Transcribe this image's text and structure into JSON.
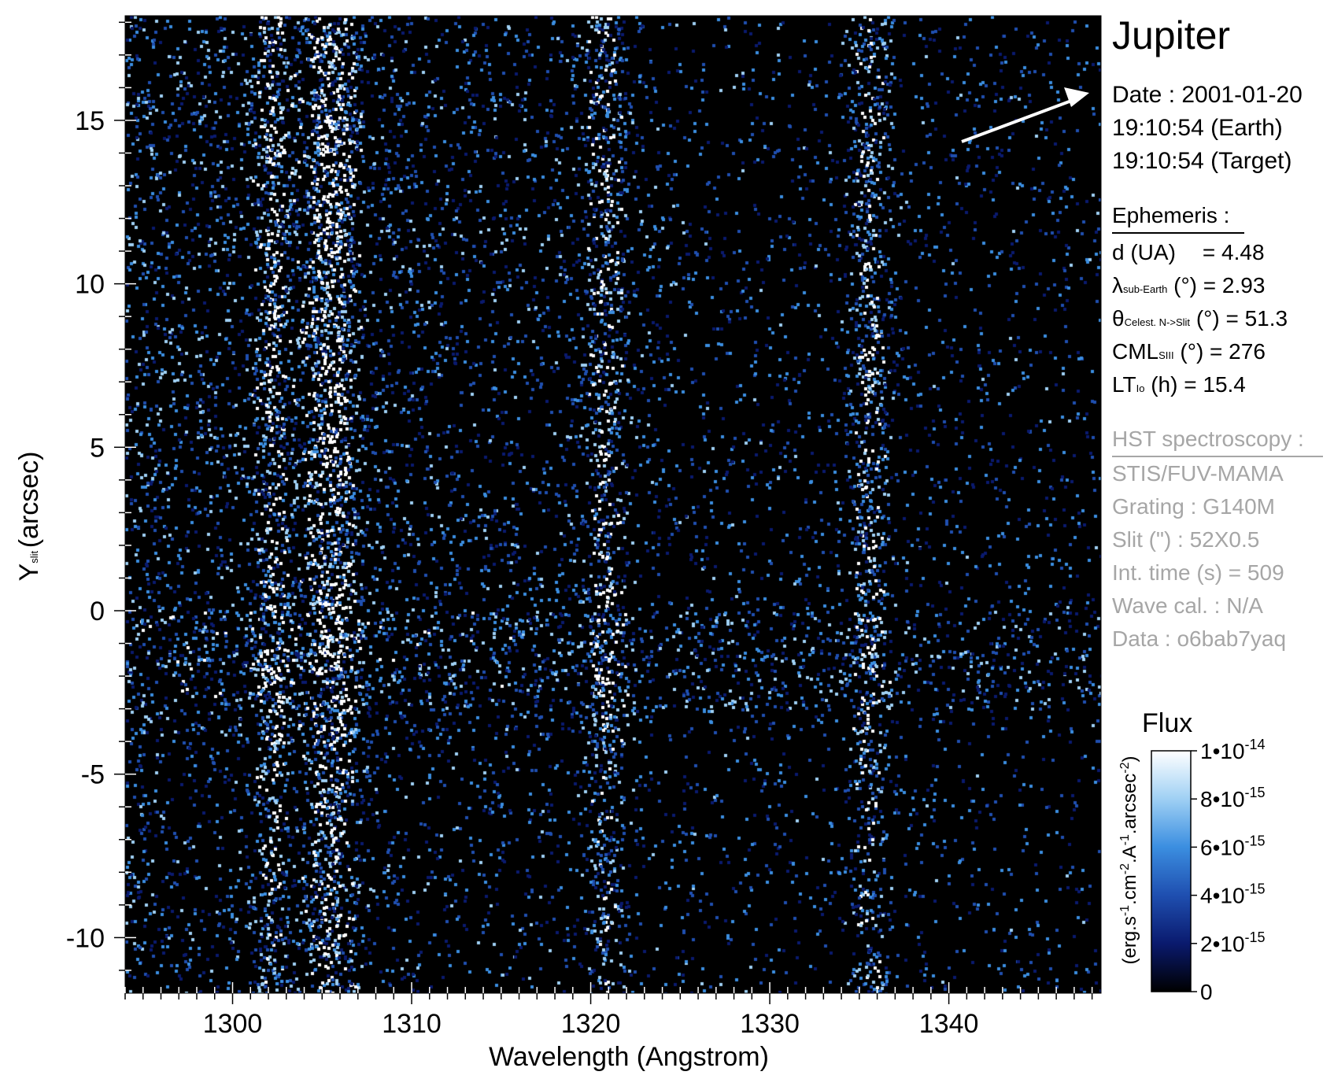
{
  "chart_data": {
    "type": "heatmap",
    "xlabel": "Wavelength (Angstrom)",
    "ylabel_main": "Y",
    "ylabel_sub": "slit",
    "ylabel_unit": "(arcsec)",
    "xlim": [
      1294,
      1348.5
    ],
    "ylim": [
      -11.7,
      18.2
    ],
    "x_ticks": [
      1300,
      1310,
      1320,
      1330,
      1340
    ],
    "x_tick_labels": [
      "1300",
      "1310",
      "1320",
      "1330",
      "1340"
    ],
    "y_ticks": [
      -10,
      -5,
      0,
      5,
      10,
      15
    ],
    "y_tick_labels": [
      "-10",
      "-5",
      "0",
      "5",
      "10",
      "15"
    ],
    "emission_bands_angstrom": [
      1302.2,
      1304.9,
      1306.0,
      1320.8,
      1335.5
    ],
    "bright_region_y_arcsec": [
      -3,
      0
    ]
  },
  "colorbar": {
    "title": "Flux",
    "range": [
      0,
      1e-14
    ],
    "unit": "(erg.s-1.cm-2.A-1.arcsec-2)",
    "unit_parts": [
      {
        "t": "(erg.s"
      },
      {
        "sup": "-1"
      },
      {
        "t": ".cm"
      },
      {
        "sup": "-2"
      },
      {
        "t": ".A"
      },
      {
        "sup": "-1"
      },
      {
        "t": ".arcsec"
      },
      {
        "sup": "-2"
      },
      {
        "t": ")"
      }
    ],
    "colors": [
      "#000000",
      "#0a1a6e",
      "#1f4fb0",
      "#3b8ee0",
      "#9fd0f4",
      "#ffffff"
    ],
    "ticks": [
      {
        "value": 1e-14,
        "base": "1•10",
        "exp": "-14"
      },
      {
        "value": 8e-15,
        "base": "8•10",
        "exp": "-15"
      },
      {
        "value": 6e-15,
        "base": "6•10",
        "exp": "-15"
      },
      {
        "value": 4e-15,
        "base": "4•10",
        "exp": "-15"
      },
      {
        "value": 2e-15,
        "base": "2•10",
        "exp": "-15"
      },
      {
        "value": 0,
        "base": "0",
        "exp": ""
      }
    ]
  },
  "info": {
    "target": "Jupiter",
    "date_line": "Date : 2001-01-20",
    "time_earth": "19:10:54 (Earth)",
    "time_target": "19:10:54 (Target)",
    "ephemeris_title": "Ephemeris :",
    "ephemeris": [
      {
        "main": "d (UA)",
        "sub": "",
        "rest": "= 4.48"
      },
      {
        "main": "λ",
        "sub": "sub-Earth",
        "rest": "(°)  = 2.93"
      },
      {
        "main": "θ",
        "sub": "Celest. N->Slit",
        "rest": "(°) = 51.3"
      },
      {
        "main": "CML",
        "sub": "SIII",
        "rest": "(°) = 276"
      },
      {
        "main": "LT",
        "sub": "Io",
        "rest": "(h) = 15.4"
      }
    ],
    "hst_title": "HST spectroscopy :",
    "hst_lines": [
      "STIS/FUV-MAMA",
      "Grating : G140M",
      "Slit (\") : 52X0.5",
      "Int. time (s) = 509",
      "Wave cal. : N/A",
      "Data : o6bab7yaq"
    ]
  }
}
